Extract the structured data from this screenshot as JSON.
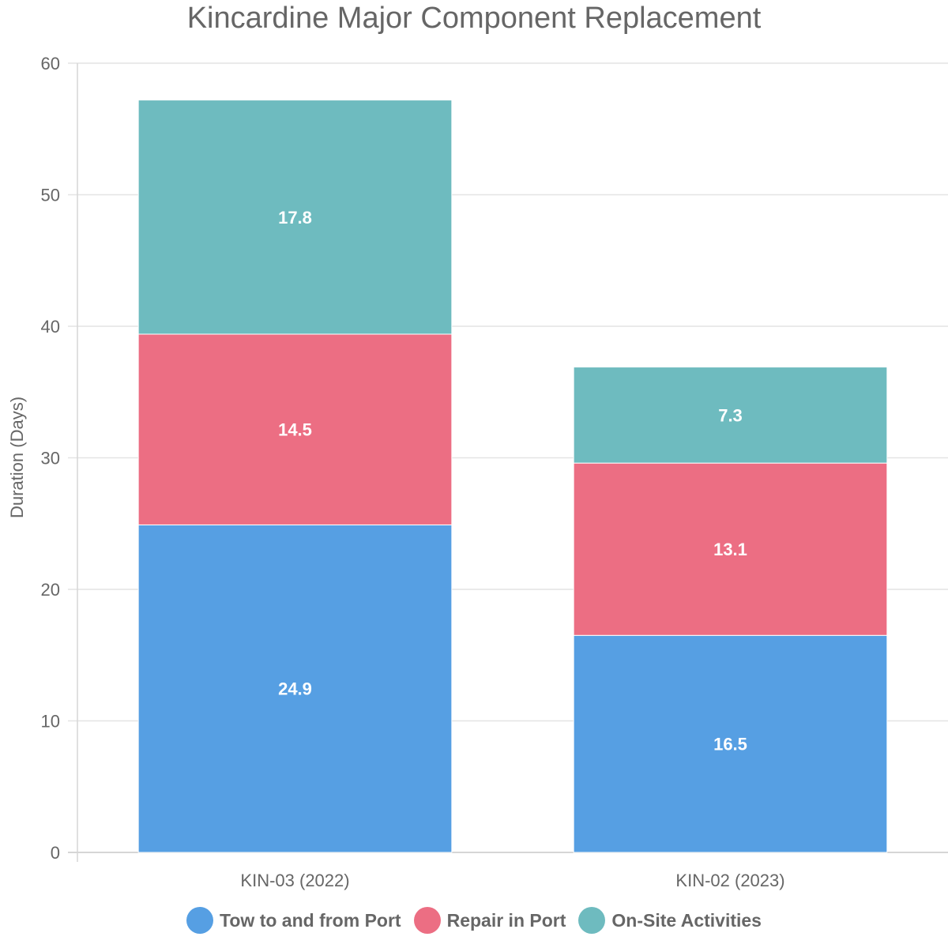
{
  "chart_data": {
    "type": "bar",
    "stacked": true,
    "title": "Kincardine Major Component Replacement",
    "xlabel": "",
    "ylabel": "Duration (Days)",
    "ylim": [
      0,
      60
    ],
    "yticks": [
      0,
      10,
      20,
      30,
      40,
      50,
      60
    ],
    "categories": [
      "KIN-03 (2022)",
      "KIN-02 (2023)"
    ],
    "series": [
      {
        "name": "Tow to and from Port",
        "color": "#569FE3",
        "values": [
          24.9,
          16.5
        ]
      },
      {
        "name": "Repair in Port",
        "color": "#EC6E83",
        "values": [
          14.5,
          13.1
        ]
      },
      {
        "name": "On-Site Activities",
        "color": "#6EBBBF",
        "values": [
          17.8,
          7.3
        ]
      }
    ],
    "grid": true,
    "legend_position": "bottom"
  }
}
